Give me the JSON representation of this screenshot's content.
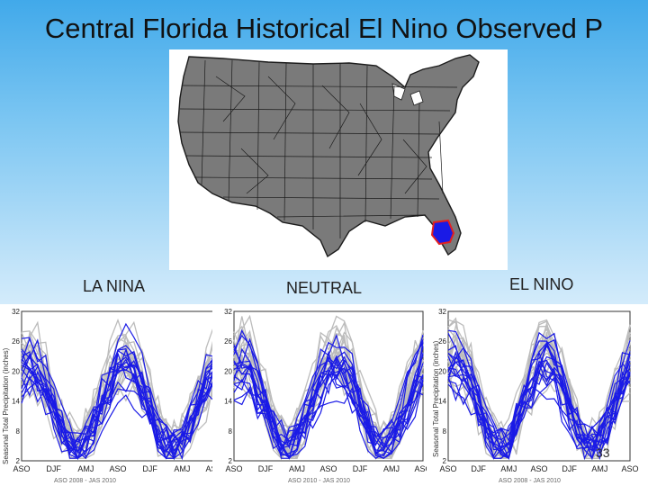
{
  "slide": {
    "title": "Central Florida Historical El Nino Observed P",
    "page_number": "33",
    "labels": {
      "la_nina": "LA NINA",
      "neutral": "NEUTRAL",
      "el_nino": "EL NINO"
    }
  },
  "colors": {
    "series": "#1a1ae6",
    "climatology": "#bcbcbc",
    "map_fill": "#7a7a7a",
    "highlight": "#e32020"
  },
  "panels": [
    {
      "name": "la-nina",
      "ylabel": "Seasonal Total Precipitation (inches)",
      "yticks": [
        "32",
        "26",
        "20",
        "14",
        "8",
        "2"
      ],
      "xticks": [
        "ASO",
        "DJF",
        "AMJ",
        "ASO",
        "DJF",
        "AMJ",
        "ASO"
      ],
      "footer": "ASO 2008 - JAS 2010"
    },
    {
      "name": "neutral",
      "ylabel": "",
      "yticks": [
        "32",
        "26",
        "20",
        "14",
        "8",
        "2"
      ],
      "xticks": [
        "ASO",
        "DJF",
        "AMJ",
        "ASO",
        "DJF",
        "AMJ",
        "ASO"
      ],
      "footer": "ASO 2010 - JAS 2010"
    },
    {
      "name": "el-nino",
      "ylabel": "Seasonal Total Precipitation (inches)",
      "yticks": [
        "32",
        "26",
        "20",
        "14",
        "8",
        "2"
      ],
      "xticks": [
        "ASO",
        "DJF",
        "AMJ",
        "ASO",
        "DJF",
        "AMJ",
        "ASO"
      ],
      "footer": "ASO 2008 - JAS 2010"
    }
  ]
}
